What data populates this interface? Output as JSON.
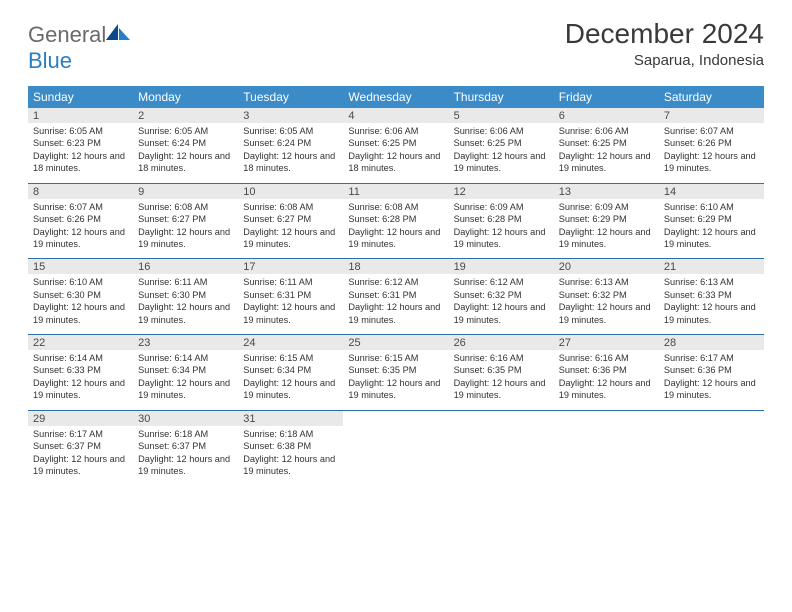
{
  "brand": {
    "part1": "General",
    "part2": "Blue"
  },
  "title": "December 2024",
  "location": "Saparua, Indonesia",
  "colors": {
    "header_bg": "#3b8bc9",
    "header_text": "#ffffff",
    "daynum_bg": "#e9e9e9",
    "rule": "#2f6fa6",
    "text": "#333333",
    "logo_gray": "#6a6a6a",
    "logo_blue": "#2a7ec4"
  },
  "typography": {
    "title_fontsize": 28,
    "location_fontsize": 15,
    "dayhead_fontsize": 12,
    "daynum_fontsize": 11,
    "detail_fontsize": 9.2
  },
  "weekdays": [
    "Sunday",
    "Monday",
    "Tuesday",
    "Wednesday",
    "Thursday",
    "Friday",
    "Saturday"
  ],
  "weeks": [
    [
      {
        "n": "1",
        "sunrise": "6:05 AM",
        "sunset": "6:23 PM",
        "daylight": "12 hours and 18 minutes."
      },
      {
        "n": "2",
        "sunrise": "6:05 AM",
        "sunset": "6:24 PM",
        "daylight": "12 hours and 18 minutes."
      },
      {
        "n": "3",
        "sunrise": "6:05 AM",
        "sunset": "6:24 PM",
        "daylight": "12 hours and 18 minutes."
      },
      {
        "n": "4",
        "sunrise": "6:06 AM",
        "sunset": "6:25 PM",
        "daylight": "12 hours and 18 minutes."
      },
      {
        "n": "5",
        "sunrise": "6:06 AM",
        "sunset": "6:25 PM",
        "daylight": "12 hours and 19 minutes."
      },
      {
        "n": "6",
        "sunrise": "6:06 AM",
        "sunset": "6:25 PM",
        "daylight": "12 hours and 19 minutes."
      },
      {
        "n": "7",
        "sunrise": "6:07 AM",
        "sunset": "6:26 PM",
        "daylight": "12 hours and 19 minutes."
      }
    ],
    [
      {
        "n": "8",
        "sunrise": "6:07 AM",
        "sunset": "6:26 PM",
        "daylight": "12 hours and 19 minutes."
      },
      {
        "n": "9",
        "sunrise": "6:08 AM",
        "sunset": "6:27 PM",
        "daylight": "12 hours and 19 minutes."
      },
      {
        "n": "10",
        "sunrise": "6:08 AM",
        "sunset": "6:27 PM",
        "daylight": "12 hours and 19 minutes."
      },
      {
        "n": "11",
        "sunrise": "6:08 AM",
        "sunset": "6:28 PM",
        "daylight": "12 hours and 19 minutes."
      },
      {
        "n": "12",
        "sunrise": "6:09 AM",
        "sunset": "6:28 PM",
        "daylight": "12 hours and 19 minutes."
      },
      {
        "n": "13",
        "sunrise": "6:09 AM",
        "sunset": "6:29 PM",
        "daylight": "12 hours and 19 minutes."
      },
      {
        "n": "14",
        "sunrise": "6:10 AM",
        "sunset": "6:29 PM",
        "daylight": "12 hours and 19 minutes."
      }
    ],
    [
      {
        "n": "15",
        "sunrise": "6:10 AM",
        "sunset": "6:30 PM",
        "daylight": "12 hours and 19 minutes."
      },
      {
        "n": "16",
        "sunrise": "6:11 AM",
        "sunset": "6:30 PM",
        "daylight": "12 hours and 19 minutes."
      },
      {
        "n": "17",
        "sunrise": "6:11 AM",
        "sunset": "6:31 PM",
        "daylight": "12 hours and 19 minutes."
      },
      {
        "n": "18",
        "sunrise": "6:12 AM",
        "sunset": "6:31 PM",
        "daylight": "12 hours and 19 minutes."
      },
      {
        "n": "19",
        "sunrise": "6:12 AM",
        "sunset": "6:32 PM",
        "daylight": "12 hours and 19 minutes."
      },
      {
        "n": "20",
        "sunrise": "6:13 AM",
        "sunset": "6:32 PM",
        "daylight": "12 hours and 19 minutes."
      },
      {
        "n": "21",
        "sunrise": "6:13 AM",
        "sunset": "6:33 PM",
        "daylight": "12 hours and 19 minutes."
      }
    ],
    [
      {
        "n": "22",
        "sunrise": "6:14 AM",
        "sunset": "6:33 PM",
        "daylight": "12 hours and 19 minutes."
      },
      {
        "n": "23",
        "sunrise": "6:14 AM",
        "sunset": "6:34 PM",
        "daylight": "12 hours and 19 minutes."
      },
      {
        "n": "24",
        "sunrise": "6:15 AM",
        "sunset": "6:34 PM",
        "daylight": "12 hours and 19 minutes."
      },
      {
        "n": "25",
        "sunrise": "6:15 AM",
        "sunset": "6:35 PM",
        "daylight": "12 hours and 19 minutes."
      },
      {
        "n": "26",
        "sunrise": "6:16 AM",
        "sunset": "6:35 PM",
        "daylight": "12 hours and 19 minutes."
      },
      {
        "n": "27",
        "sunrise": "6:16 AM",
        "sunset": "6:36 PM",
        "daylight": "12 hours and 19 minutes."
      },
      {
        "n": "28",
        "sunrise": "6:17 AM",
        "sunset": "6:36 PM",
        "daylight": "12 hours and 19 minutes."
      }
    ],
    [
      {
        "n": "29",
        "sunrise": "6:17 AM",
        "sunset": "6:37 PM",
        "daylight": "12 hours and 19 minutes."
      },
      {
        "n": "30",
        "sunrise": "6:18 AM",
        "sunset": "6:37 PM",
        "daylight": "12 hours and 19 minutes."
      },
      {
        "n": "31",
        "sunrise": "6:18 AM",
        "sunset": "6:38 PM",
        "daylight": "12 hours and 19 minutes."
      },
      null,
      null,
      null,
      null
    ]
  ],
  "labels": {
    "sunrise": "Sunrise:",
    "sunset": "Sunset:",
    "daylight": "Daylight:"
  }
}
